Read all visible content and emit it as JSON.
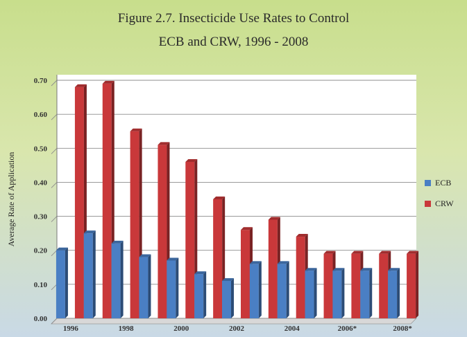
{
  "title_line1": "Figure 2.7.  Insecticide Use Rates to Control",
  "title_line2": "ECB and CRW, 1996 - 2008",
  "chart_data": {
    "type": "bar",
    "title": "Figure 2.7. Insecticide Use Rates to Control ECB and CRW, 1996 - 2008",
    "ylabel": "Average Rate of Application",
    "xlabel": "",
    "ylim": [
      0,
      0.7
    ],
    "yticks": [
      "0.00",
      "0.10",
      "0.20",
      "0.30",
      "0.40",
      "0.50",
      "0.60",
      "0.70"
    ],
    "categories": [
      "1996",
      "1997",
      "1998",
      "1999",
      "2000",
      "2001",
      "2002",
      "2003",
      "2004",
      "2005",
      "2006*",
      "2007",
      "2008*"
    ],
    "xtick_labels": [
      "1996",
      "",
      "1998",
      "",
      "2000",
      "",
      "2002",
      "",
      "2004",
      "",
      "2006*",
      "",
      "2008*"
    ],
    "series": [
      {
        "name": "ECB",
        "color": "#4a7fc4",
        "values": [
          0.2,
          0.25,
          0.22,
          0.18,
          0.17,
          0.13,
          0.11,
          0.16,
          0.16,
          0.14,
          0.14,
          0.14,
          0.14
        ]
      },
      {
        "name": "CRW",
        "color": "#c9383a",
        "values": [
          0.68,
          0.69,
          0.55,
          0.51,
          0.46,
          0.35,
          0.26,
          0.29,
          0.24,
          0.19,
          0.19,
          0.19,
          0.19
        ]
      }
    ],
    "grid": true,
    "legend_position": "right"
  }
}
